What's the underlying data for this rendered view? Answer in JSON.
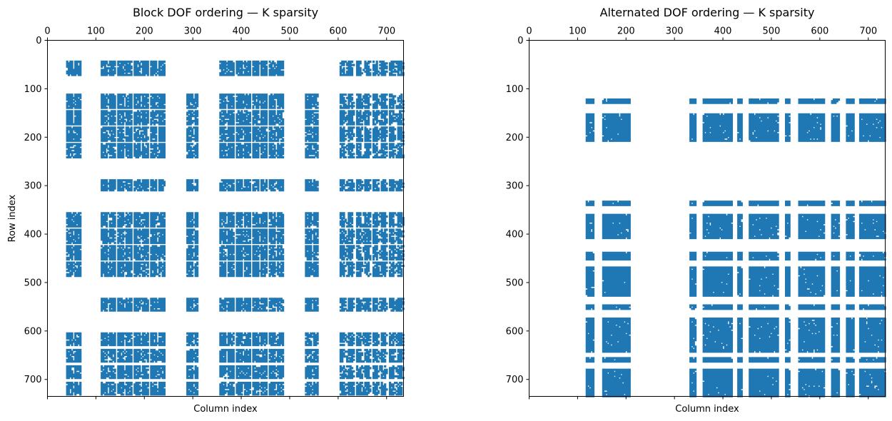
{
  "chart_data": [
    {
      "type": "heatmap",
      "subtype": "spy",
      "title": "Block DOF ordering — K sparsity",
      "xlabel": "Column index",
      "ylabel": "Row index",
      "xlim": [
        0,
        735
      ],
      "ylim": [
        735,
        0
      ],
      "xticks": [
        0,
        100,
        200,
        300,
        400,
        500,
        600,
        700
      ],
      "yticks": [
        0,
        100,
        200,
        300,
        400,
        500,
        600,
        700
      ],
      "xticks_position": "top",
      "color": "#1f77b4",
      "pattern": "block-periodic",
      "row_bands": [
        [
          42,
          72
        ],
        [
          112,
          245
        ],
        [
          287,
          312
        ],
        [
          356,
          487
        ],
        [
          532,
          558
        ],
        [
          602,
          735
        ]
      ],
      "col_bands": [
        [
          40,
          72
        ],
        [
          110,
          245
        ],
        [
          287,
          312
        ],
        [
          356,
          490
        ],
        [
          532,
          558
        ],
        [
          602,
          735
        ]
      ],
      "block_mask": [
        [
          1,
          1,
          0,
          1,
          0,
          1
        ],
        [
          1,
          1,
          1,
          1,
          1,
          1
        ],
        [
          0,
          1,
          1,
          1,
          1,
          1
        ],
        [
          1,
          1,
          1,
          1,
          1,
          1
        ],
        [
          0,
          1,
          1,
          1,
          1,
          1
        ],
        [
          1,
          1,
          1,
          1,
          1,
          1
        ]
      ]
    },
    {
      "type": "heatmap",
      "subtype": "spy",
      "title": "Alternated DOF ordering — K sparsity",
      "xlabel": "Column index",
      "ylabel": "",
      "xlim": [
        0,
        735
      ],
      "ylim": [
        735,
        0
      ],
      "xticks": [
        0,
        100,
        200,
        300,
        400,
        500,
        600,
        700
      ],
      "yticks": [
        0,
        100,
        200,
        300,
        400,
        500,
        600,
        700
      ],
      "xticks_position": "top",
      "color": "#1f77b4",
      "pattern": "dense-bands",
      "row_bands": [
        [
          120,
          210
        ],
        [
          330,
          735
        ]
      ],
      "col_bands": [
        [
          118,
          210
        ],
        [
          330,
          735
        ]
      ],
      "gap_rows": [
        130,
        153,
        343,
        360,
        410,
        438,
        453,
        468,
        530,
        545,
        557,
        573,
        643,
        653,
        665,
        678
      ],
      "gap_cols": [
        133,
        150,
        345,
        360,
        420,
        430,
        440,
        455,
        515,
        530,
        540,
        555,
        610,
        625,
        640,
        655,
        670,
        680
      ]
    }
  ]
}
